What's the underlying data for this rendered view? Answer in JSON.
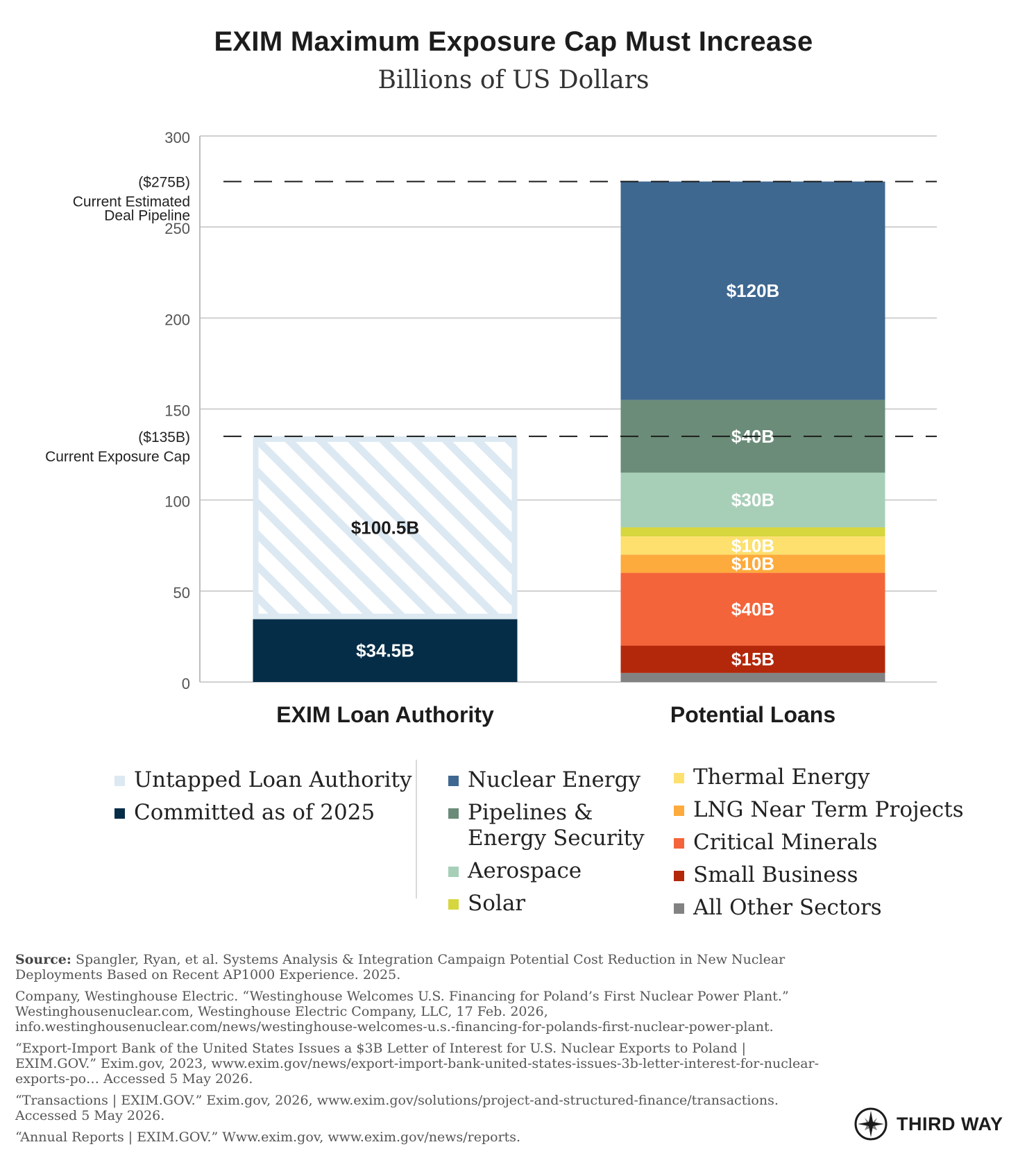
{
  "chart_data": {
    "type": "bar",
    "stacked": true,
    "title": "EXIM Maximum Exposure Cap Must Increase",
    "subtitle": "Billions of US Dollars",
    "categories": [
      "EXIM Loan Authority",
      "Potential Loans"
    ],
    "ylim": [
      0,
      300
    ],
    "yticks": [
      "0",
      "50",
      "100",
      "150",
      "200",
      "250",
      "300"
    ],
    "grid": true,
    "series": [
      {
        "name": "Committed as of 2025",
        "color": "#062d48",
        "pattern": "",
        "values": [
          34.5,
          0
        ],
        "labels": [
          "$34.5B",
          ""
        ]
      },
      {
        "name": "Untapped Loan Authority",
        "color": "#dce9f2",
        "pattern": "hatch",
        "values": [
          100.5,
          0
        ],
        "labels": [
          "$100.5B",
          ""
        ]
      },
      {
        "name": "All Other Sectors",
        "color": "#828282",
        "pattern": "",
        "values": [
          0,
          5
        ],
        "labels": [
          "",
          ""
        ]
      },
      {
        "name": "Small Business",
        "color": "#b3280b",
        "pattern": "",
        "values": [
          0,
          15
        ],
        "labels": [
          "",
          "$15B"
        ]
      },
      {
        "name": "Critical Minerals",
        "color": "#f4643a",
        "pattern": "",
        "values": [
          0,
          40
        ],
        "labels": [
          "",
          "$40B"
        ]
      },
      {
        "name": "LNG Near Term Projects",
        "color": "#fdab3c",
        "pattern": "",
        "values": [
          0,
          10
        ],
        "labels": [
          "",
          "$10B"
        ]
      },
      {
        "name": "Thermal Energy",
        "color": "#fde06e",
        "pattern": "",
        "values": [
          0,
          10
        ],
        "labels": [
          "",
          "$10B"
        ]
      },
      {
        "name": "Solar",
        "color": "#d6d63f",
        "pattern": "",
        "values": [
          0,
          5
        ],
        "labels": [
          "",
          ""
        ]
      },
      {
        "name": "Aerospace",
        "color": "#a7cfb8",
        "pattern": "",
        "values": [
          0,
          30
        ],
        "labels": [
          "",
          "$30B"
        ]
      },
      {
        "name": "Pipelines & Energy Security",
        "color": "#6b8c78",
        "pattern": "",
        "values": [
          0,
          40
        ],
        "labels": [
          "",
          "$40B"
        ]
      },
      {
        "name": "Nuclear Energy",
        "color": "#3f6890",
        "pattern": "",
        "values": [
          0,
          120
        ],
        "labels": [
          "",
          "$120B"
        ]
      }
    ],
    "reference_lines": [
      {
        "value": 275,
        "label_value": "($275B)",
        "label_lines": [
          "Current Estimated",
          "Deal Pipeline"
        ]
      },
      {
        "value": 135,
        "label_value": "($135B)",
        "label_lines": [
          "Current Exposure Cap"
        ]
      }
    ]
  },
  "legend": {
    "group1": [
      {
        "label": "Untapped Loan Authority",
        "color": "#dce9f2"
      },
      {
        "label": "Committed as of 2025",
        "color": "#062d48"
      }
    ],
    "group2": [
      {
        "label": "Nuclear Energy",
        "color": "#3f6890"
      },
      {
        "label": "Pipelines &",
        "label2": "Energy Security",
        "color": "#6b8c78"
      },
      {
        "label": "Aerospace",
        "color": "#a7cfb8"
      },
      {
        "label": "Solar",
        "color": "#d6d63f"
      }
    ],
    "group3": [
      {
        "label": "Thermal Energy",
        "color": "#fde06e"
      },
      {
        "label": "LNG Near Term Projects",
        "color": "#fdab3c"
      },
      {
        "label": "Critical Minerals",
        "color": "#f4643a"
      },
      {
        "label": "Small Business",
        "color": "#b3280b"
      },
      {
        "label": "All Other Sectors",
        "color": "#828282"
      }
    ]
  },
  "sources": {
    "source_label": "Source:",
    "source_1": "Spangler, Ryan, et al. Systems Analysis & Integration Campaign Potential Cost Reduction in New Nuclear Deployments Based on Recent AP1000 Experience. 2025.",
    "source_2": "Company, Westinghouse Electric. “Westinghouse Welcomes U.S. Financing for Poland’s First Nuclear Power Plant.” Westinghousenuclear.com, Westinghouse Electric Company, LLC, 17 Feb. 2026, info.westinghousenuclear.com/news/westinghouse-welcomes-u.s.-financing-for-polands-first-nuclear-power-plant.",
    "source_3": "“Export-Import Bank of the United States Issues a $3B Letter of Interest for U.S. Nuclear Exports to Poland | EXIM.GOV.” Exim.gov, 2023, www.exim.gov/news/export-import-bank-united-states-issues-3b-letter-interest-for-nuclear-exports-po… Accessed 5 May 2026.",
    "source_4": "“Transactions | EXIM.GOV.” Exim.gov, 2026, www.exim.gov/solutions/project-and-structured-finance/transactions. Accessed 5 May 2026.",
    "source_5": "“Annual Reports | EXIM.GOV.” Www.exim.gov, www.exim.gov/news/reports."
  },
  "logo": {
    "text": "THIRD WAY"
  }
}
